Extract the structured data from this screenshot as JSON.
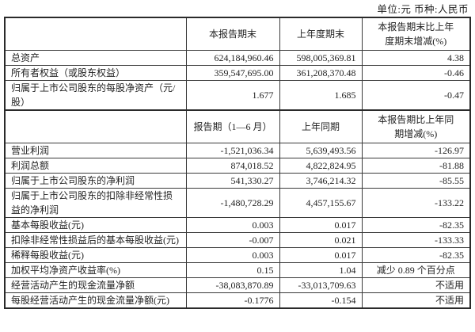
{
  "unit_note": "单位:元 币种:人民币",
  "table": {
    "rows": [
      {
        "type": "header",
        "cells": [
          "",
          "本报告期末",
          "上年度期末",
          "本报告期末比上年度期末增减(%)"
        ]
      },
      {
        "type": "data",
        "cells": [
          "总资产",
          "624,184,960.46",
          "598,005,369.81",
          "4.38"
        ]
      },
      {
        "type": "data",
        "cells": [
          "所有者权益（或股东权益）",
          "359,547,695.00",
          "361,208,370.48",
          "-0.46"
        ]
      },
      {
        "type": "data",
        "cells": [
          "归属于上市公司股东的每股净资产（元/股）",
          "1.677",
          "1.685",
          "-0.47"
        ]
      },
      {
        "type": "header",
        "cells": [
          "",
          "报告期（1—6 月）",
          "上年同期",
          "本报告期比上年同期增减(%)"
        ]
      },
      {
        "type": "data",
        "cells": [
          "营业利润",
          "-1,521,036.34",
          "5,639,493.56",
          "-126.97"
        ]
      },
      {
        "type": "data",
        "cells": [
          "利润总额",
          "874,018.52",
          "4,822,824.95",
          "-81.88"
        ]
      },
      {
        "type": "data",
        "cells": [
          "归属于上市公司股东的净利润",
          "541,330.27",
          "3,746,214.32",
          "-85.55"
        ]
      },
      {
        "type": "data",
        "cells": [
          "归属于上市公司股东的扣除非经常性损益的净利润",
          "-1,480,728.29",
          "4,457,155.67",
          "-133.22"
        ]
      },
      {
        "type": "data",
        "cells": [
          "基本每股收益(元)",
          "0.003",
          "0.017",
          "-82.35"
        ]
      },
      {
        "type": "data",
        "cells": [
          "扣除非经常性损益后的基本每股收益(元)",
          "-0.007",
          "0.021",
          "-133.33"
        ]
      },
      {
        "type": "data",
        "cells": [
          "稀释每股收益(元)",
          "0.003",
          "0.017",
          "-82.35"
        ]
      },
      {
        "type": "data",
        "cells": [
          "加权平均净资产收益率(%)",
          "0.15",
          "1.04",
          "减少 0.89 个百分点"
        ]
      },
      {
        "type": "data",
        "cells": [
          "经营活动产生的现金流量净额",
          "-38,083,870.89",
          "-33,013,709.63",
          "不适用"
        ]
      },
      {
        "type": "data",
        "cells": [
          "每股经营活动产生的现金流量净额(元)",
          "-0.1776",
          "-0.154",
          "不适用"
        ]
      }
    ]
  }
}
